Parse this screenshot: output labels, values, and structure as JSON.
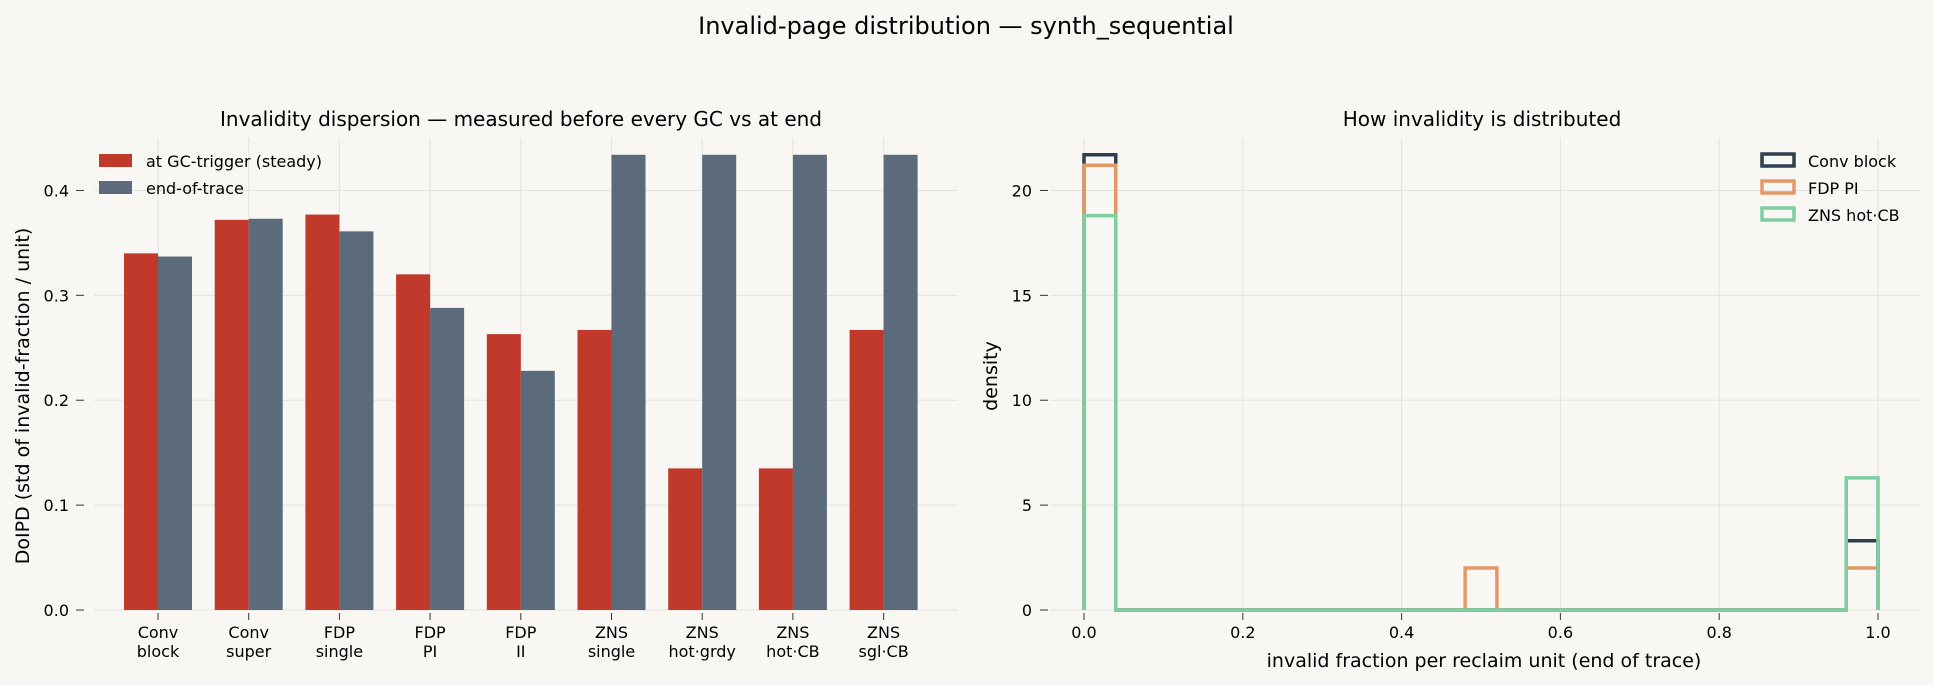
{
  "figure": {
    "suptitle": "Invalid-page distribution — synth_sequential"
  },
  "chart_data": [
    {
      "type": "bar",
      "title": "Invalidity dispersion — measured before every GC vs at end",
      "xlabel": "",
      "ylabel": "DoIPD  (std of invalid-fraction / unit)",
      "categories": [
        [
          "Conv",
          "block"
        ],
        [
          "Conv",
          "super"
        ],
        [
          "FDP",
          "single"
        ],
        [
          "FDP",
          "PI"
        ],
        [
          "FDP",
          "II"
        ],
        [
          "ZNS",
          "single"
        ],
        [
          "ZNS",
          "hot·grdy"
        ],
        [
          "ZNS",
          "hot·CB"
        ],
        [
          "ZNS",
          "sgl·CB"
        ]
      ],
      "series": [
        {
          "name": "at GC-trigger (steady)",
          "color": "#c0392b",
          "values": [
            0.34,
            0.372,
            0.377,
            0.32,
            0.263,
            0.267,
            0.135,
            0.135,
            0.267
          ]
        },
        {
          "name": "end-of-trace",
          "color": "#5c6b7c",
          "values": [
            0.337,
            0.373,
            0.361,
            0.288,
            0.228,
            0.434,
            0.434,
            0.434,
            0.434
          ]
        }
      ],
      "ylim": [
        0,
        0.45
      ],
      "yticks": [
        "0.0",
        "0.1",
        "0.2",
        "0.3",
        "0.4"
      ],
      "grid": true,
      "legend_position": "top-left"
    },
    {
      "type": "histogram",
      "title": "How invalidity is distributed",
      "xlabel": "invalid fraction per reclaim unit (end of trace)",
      "ylabel": "density",
      "bin_width": 0.04,
      "xlim": [
        0,
        1.0
      ],
      "ylim": [
        0,
        22.5
      ],
      "xticks": [
        "0.0",
        "0.2",
        "0.4",
        "0.6",
        "0.8",
        "1.0"
      ],
      "yticks": [
        "0",
        "5",
        "10",
        "15",
        "20"
      ],
      "grid": true,
      "legend_position": "top-right",
      "series": [
        {
          "name": "Conv block",
          "color": "#2c3e50",
          "bins": [
            {
              "x0": 0.0,
              "x1": 0.04,
              "y": 21.7
            },
            {
              "x0": 0.96,
              "x1": 1.0,
              "y": 3.3
            }
          ]
        },
        {
          "name": "FDP PI",
          "color": "#e59866",
          "bins": [
            {
              "x0": 0.0,
              "x1": 0.04,
              "y": 21.2
            },
            {
              "x0": 0.48,
              "x1": 0.52,
              "y": 2.0
            },
            {
              "x0": 0.96,
              "x1": 1.0,
              "y": 2.0
            }
          ]
        },
        {
          "name": "ZNS hot·CB",
          "color": "#7dcea0",
          "bins": [
            {
              "x0": 0.0,
              "x1": 0.04,
              "y": 18.8
            },
            {
              "x0": 0.96,
              "x1": 1.0,
              "y": 6.3
            }
          ]
        }
      ]
    }
  ]
}
